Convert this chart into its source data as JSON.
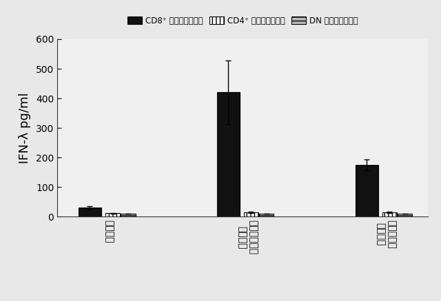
{
  "groups": [
    "刷激無し",
    "セムリキ森林\nウイルス",
    "マウス肂芳\nウイルス"
  ],
  "series": [
    {
      "name": "CD8⁺ 従来型樹状細胞",
      "values": [
        30,
        420,
        175
      ],
      "errors": [
        5,
        108,
        18
      ],
      "hatch": "",
      "facecolor": "#111111",
      "edgecolor": "#000000",
      "bar_width": 0.28
    },
    {
      "name": "CD4⁺ 従来型樹状細胞",
      "values": [
        12,
        15,
        15
      ],
      "errors": [
        1,
        2,
        2
      ],
      "hatch": "|||",
      "facecolor": "#ffffff",
      "edgecolor": "#000000",
      "bar_width": 0.18
    },
    {
      "name": "DN 従来型樹状細胞",
      "values": [
        10,
        10,
        10
      ],
      "errors": [
        1,
        1,
        1
      ],
      "hatch": "---",
      "facecolor": "#bbbbbb",
      "edgecolor": "#000000",
      "bar_width": 0.18
    }
  ],
  "ylabel": "IFN-λ pg/ml",
  "ylim": [
    0,
    600
  ],
  "yticks": [
    0,
    100,
    200,
    300,
    400,
    500,
    600
  ],
  "group_positions": [
    0.5,
    2.2,
    3.9
  ],
  "background_color": "#e8e8e8",
  "plot_bg_color": "#f0f0f0",
  "legend_fontsize": 8.5,
  "axis_fontsize": 13,
  "tick_fontsize": 10
}
